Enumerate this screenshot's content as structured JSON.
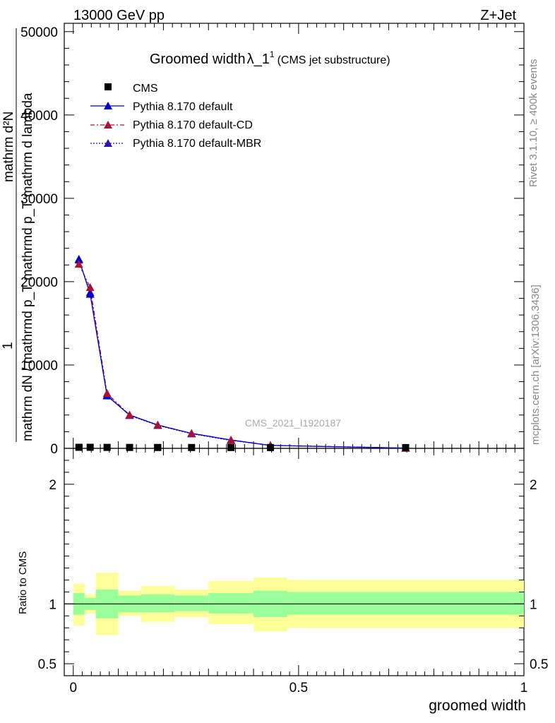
{
  "header": {
    "energy": "13000 GeV pp",
    "process": "Z+Jet",
    "rivet_note": "Rivet 3.1.10, ≥ 400k events",
    "mcplots_note": "mcplots.cern.ch [arXiv:1306.3436]",
    "analysis_id": "CMS_2021_I1920187"
  },
  "colors": {
    "default": "#0000cc",
    "cd": "#aa1133",
    "mbr": "#3311aa",
    "band_inner": "#99ff99",
    "band_outer": "#ffff99",
    "data": "#000000"
  },
  "chart_data": [
    {
      "type": "line",
      "title_main": "Groomed width",
      "title_var": "λ_1",
      "title_sup": "1",
      "title_sub": "(CMS jet substructure)",
      "ylabel_num": "1",
      "ylabel_den": "mathrm dN / mathrmd p_T mathrmd p_T mathrm d lambda",
      "ylabel_top": "mathrm d²N",
      "ylim": [
        0,
        51000
      ],
      "xlim": [
        -0.02,
        1.0
      ],
      "yticks": [
        0,
        10000,
        20000,
        30000,
        40000,
        50000
      ],
      "ytick_labels": [
        "0",
        "10000",
        "20000",
        "30000",
        "40000",
        "50000"
      ],
      "legend": [
        "CMS",
        "Pythia 8.170 default",
        "Pythia 8.170 default-CD",
        "Pythia 8.170 default-MBR"
      ],
      "x_edges": [
        0.0,
        0.025,
        0.05,
        0.1,
        0.15,
        0.225,
        0.3,
        0.4,
        0.475,
        1.0
      ],
      "x": [
        0.0125,
        0.0375,
        0.075,
        0.125,
        0.1875,
        0.2625,
        0.35,
        0.4375,
        0.7375
      ],
      "series": [
        {
          "name": "CMS",
          "values": [
            40,
            40,
            30,
            25,
            20,
            15,
            12,
            8,
            5
          ]
        },
        {
          "name": "Pythia 8.170 default",
          "values": [
            22700,
            18500,
            6300,
            4000,
            2800,
            1800,
            1000,
            350,
            30
          ],
          "err": [
            350,
            300,
            150,
            80,
            60,
            50,
            40,
            30,
            10
          ]
        },
        {
          "name": "Pythia 8.170 default-CD",
          "values": [
            22100,
            19300,
            6600,
            4000,
            2800,
            1800,
            1000,
            370,
            30
          ]
        },
        {
          "name": "Pythia 8.170 default-MBR",
          "values": [
            22600,
            18700,
            6400,
            3950,
            2750,
            1750,
            950,
            350,
            30
          ]
        }
      ]
    },
    {
      "type": "area",
      "ylabel": "Ratio to CMS",
      "xlabel": "groomed width",
      "ylim": [
        0.4,
        2.3
      ],
      "xlim": [
        -0.02,
        1.0
      ],
      "yticks": [
        0.5,
        1,
        2
      ],
      "ytick_labels": [
        "0.5",
        "1",
        "2"
      ],
      "xticks": [
        0,
        0.5,
        1
      ],
      "xtick_labels": [
        "0",
        "0.5",
        "1"
      ],
      "x_edges": [
        0.0,
        0.025,
        0.05,
        0.1,
        0.15,
        0.225,
        0.3,
        0.4,
        0.475,
        1.0
      ],
      "inner_low": [
        0.91,
        0.95,
        0.88,
        0.93,
        0.93,
        0.94,
        0.92,
        0.89,
        0.91
      ],
      "inner_high": [
        1.09,
        1.05,
        1.12,
        1.07,
        1.08,
        1.07,
        1.09,
        1.11,
        1.1
      ],
      "outer_low": [
        0.82,
        0.92,
        0.74,
        0.9,
        0.85,
        0.89,
        0.83,
        0.77,
        0.8
      ],
      "outer_high": [
        1.17,
        1.08,
        1.26,
        1.11,
        1.15,
        1.12,
        1.19,
        1.22,
        1.2
      ]
    }
  ]
}
